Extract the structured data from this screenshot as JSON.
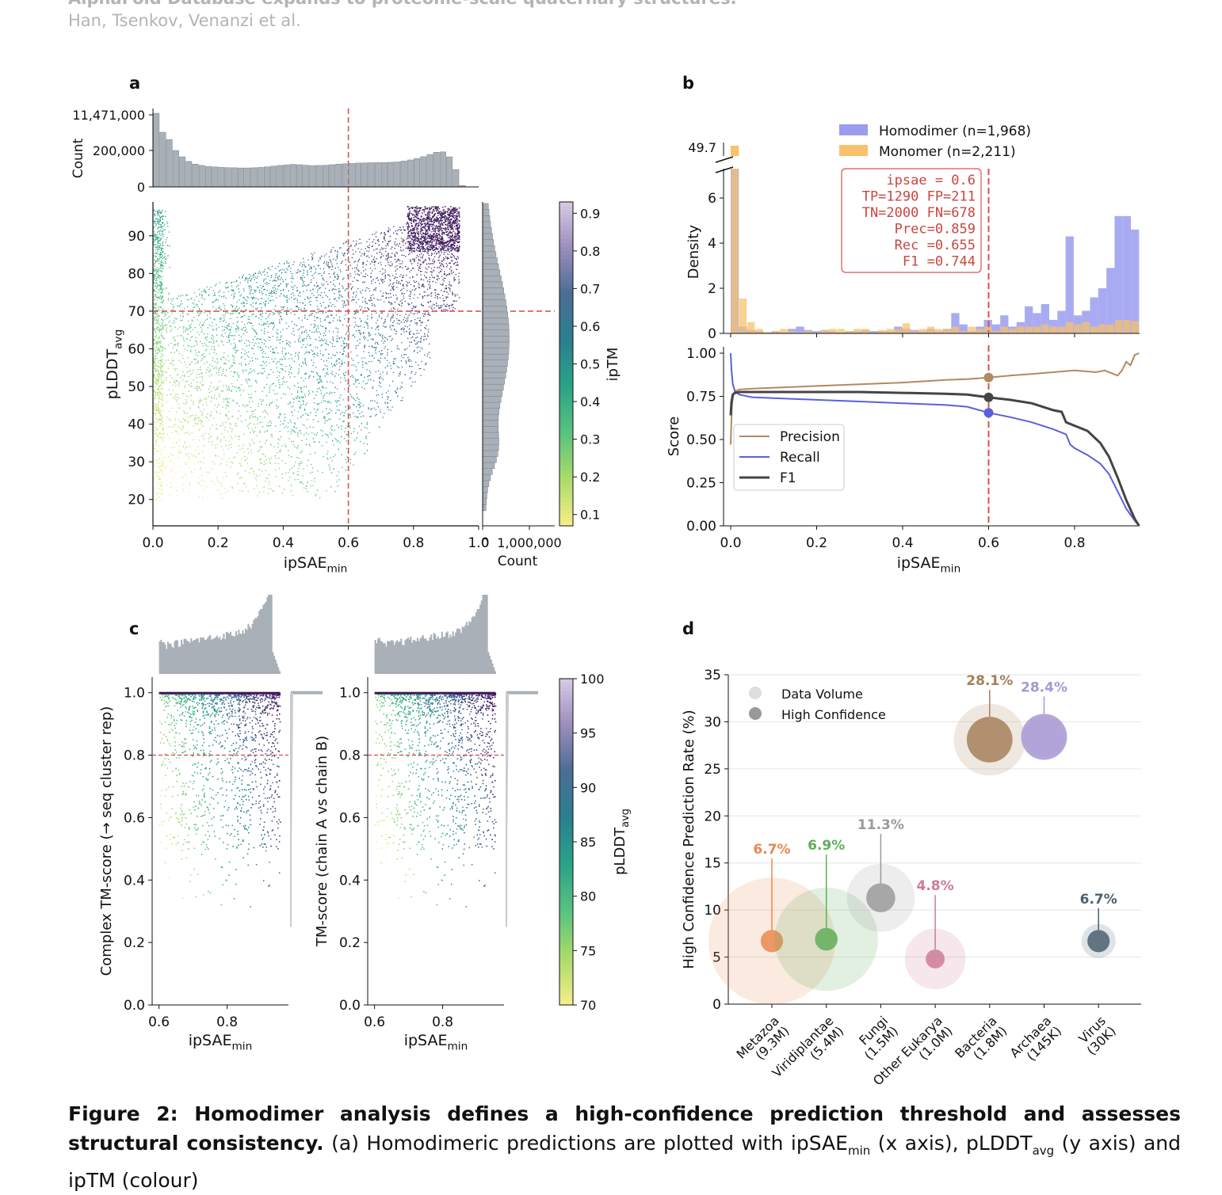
{
  "header": {
    "title": "AlphaFold Database expands to proteome-scale quaternary structures.",
    "authors": "Han, Tsenkov, Venanzi et al."
  },
  "panels": {
    "a": "a",
    "b": "b",
    "c": "c",
    "d": "d"
  },
  "caption": {
    "lead": "Figure 2: Homodimer analysis defines a high-confidence prediction threshold and assesses structural consistency.",
    "t1": " (a) Homodimeric predictions are plotted with ipSAE",
    "s1": "min",
    "t2": " (x axis), pLDDT",
    "s2": "avg",
    "t3": " (y axis) and ipTM (colour)"
  },
  "colors": {
    "threshold": "#d9534f",
    "hist_gray": "#a9b0b7",
    "homodimer": "#9a9cf0",
    "monomer": "#f7c26b",
    "precision": "#b08a63",
    "recall": "#5a60e0",
    "f1": "#444444"
  },
  "chart_data": [
    {
      "panel": "a",
      "type": "scatter",
      "xlabel": "ipSAE",
      "xlabel_sub": "min",
      "ylabel": "pLDDT",
      "ylabel_sub": "avg",
      "xlim": [
        0,
        1.0
      ],
      "ylim": [
        13,
        99
      ],
      "x_ticks": [
        "0.0",
        "0.2",
        "0.4",
        "0.6",
        "0.8",
        "1.0"
      ],
      "y_ticks": [
        "20",
        "30",
        "40",
        "50",
        "60",
        "70",
        "80",
        "90"
      ],
      "threshold_x": 0.6,
      "threshold_y": 70,
      "colorbar": {
        "label": "ipTM",
        "range": [
          0.07,
          0.93
        ],
        "ticks": [
          "0.1",
          "0.2",
          "0.3",
          "0.4",
          "0.5",
          "0.6",
          "0.7",
          "0.8",
          "0.9"
        ]
      },
      "top_hist": {
        "ylabel": "Count",
        "y_ticks": [
          "0",
          "200,000",
          "11,471,000"
        ],
        "bins_x": [
          0.0,
          0.02,
          0.04,
          0.06,
          0.08,
          0.1,
          0.12,
          0.14,
          0.16,
          0.18,
          0.2,
          0.22,
          0.24,
          0.26,
          0.28,
          0.3,
          0.32,
          0.34,
          0.36,
          0.38,
          0.4,
          0.42,
          0.44,
          0.46,
          0.48,
          0.5,
          0.52,
          0.54,
          0.56,
          0.58,
          0.6,
          0.62,
          0.64,
          0.66,
          0.68,
          0.7,
          0.72,
          0.74,
          0.76,
          0.78,
          0.8,
          0.82,
          0.84,
          0.86,
          0.88,
          0.9,
          0.92,
          0.94
        ],
        "counts": [
          11471000,
          300000,
          260000,
          200000,
          165000,
          140000,
          125000,
          118000,
          112000,
          110000,
          108000,
          106000,
          105000,
          104000,
          104000,
          105000,
          107000,
          110000,
          114000,
          118000,
          121000,
          124000,
          122000,
          119000,
          117000,
          118000,
          119000,
          122000,
          125000,
          127000,
          129000,
          131000,
          132000,
          133000,
          134000,
          134000,
          135000,
          137000,
          142000,
          148000,
          156000,
          166000,
          178000,
          190000,
          192000,
          165000,
          95000,
          8000
        ]
      },
      "right_hist": {
        "xlabel": "Count",
        "x_ticks": [
          "0",
          "1,000,000"
        ]
      }
    },
    {
      "panel": "b-top",
      "type": "bar",
      "ylabel": "Density",
      "xlim": [
        0,
        0.95
      ],
      "ylim": [
        0,
        7.3
      ],
      "y_ticks": [
        "0",
        "2",
        "4",
        "6"
      ],
      "broken_top": "49.7",
      "threshold_x": 0.6,
      "bin_width": 0.019,
      "series": [
        {
          "name": "Homodimer (n=1,968)",
          "x": [
            0.0,
            0.019,
            0.038,
            0.057,
            0.076,
            0.095,
            0.114,
            0.133,
            0.152,
            0.171,
            0.19,
            0.209,
            0.228,
            0.247,
            0.266,
            0.285,
            0.304,
            0.323,
            0.342,
            0.361,
            0.38,
            0.399,
            0.418,
            0.437,
            0.456,
            0.475,
            0.494,
            0.513,
            0.532,
            0.551,
            0.57,
            0.589,
            0.608,
            0.627,
            0.646,
            0.665,
            0.684,
            0.703,
            0.722,
            0.741,
            0.76,
            0.779,
            0.798,
            0.817,
            0.836,
            0.855,
            0.874,
            0.893,
            0.912,
            0.931
          ],
          "values": [
            7.3,
            0.3,
            0.15,
            0.1,
            0.05,
            0.1,
            0.05,
            0.2,
            0.3,
            0.15,
            0.1,
            0.15,
            0.1,
            0.05,
            0.1,
            0.1,
            0.15,
            0.1,
            0.1,
            0.1,
            0.3,
            0.2,
            0.15,
            0.1,
            0.2,
            0.1,
            0.2,
            0.9,
            0.4,
            0.1,
            0.3,
            0.6,
            0.4,
            0.8,
            0.3,
            0.5,
            1.2,
            0.9,
            1.3,
            0.6,
            1.0,
            4.3,
            0.8,
            1.0,
            1.6,
            2.0,
            2.9,
            5.2,
            5.2,
            4.6
          ]
        },
        {
          "name": "Monomer (n=2,211)",
          "x": [
            0.0,
            0.019,
            0.038,
            0.057,
            0.076,
            0.095,
            0.114,
            0.133,
            0.152,
            0.171,
            0.19,
            0.209,
            0.228,
            0.247,
            0.266,
            0.285,
            0.304,
            0.323,
            0.342,
            0.361,
            0.38,
            0.399,
            0.418,
            0.437,
            0.456,
            0.475,
            0.494,
            0.513,
            0.532,
            0.551,
            0.57,
            0.589,
            0.608,
            0.627,
            0.646,
            0.665,
            0.684,
            0.703,
            0.722,
            0.741,
            0.76,
            0.779,
            0.798,
            0.817,
            0.836,
            0.855,
            0.874,
            0.893,
            0.912,
            0.931
          ],
          "values": [
            7.3,
            1.55,
            0.5,
            0.2,
            0.05,
            0.1,
            0.2,
            0.1,
            0.05,
            0.1,
            0.05,
            0.15,
            0.2,
            0.2,
            0.1,
            0.2,
            0.2,
            0.05,
            0.15,
            0.2,
            0.2,
            0.45,
            0.1,
            0.2,
            0.3,
            0.2,
            0.2,
            0.3,
            0.1,
            0.3,
            0.2,
            0.3,
            0.1,
            0.3,
            0.2,
            0.3,
            0.3,
            0.3,
            0.4,
            0.3,
            0.3,
            0.5,
            0.4,
            0.5,
            0.3,
            0.4,
            0.4,
            0.6,
            0.6,
            0.55
          ]
        }
      ],
      "annotation": [
        "ipsae = 0.6",
        "TP=1290  FP=211",
        "TN=2000  FN=678",
        "Prec=0.859",
        "Rec =0.655",
        "F1  =0.744"
      ]
    },
    {
      "panel": "b-bottom",
      "type": "line",
      "xlabel": "ipSAE",
      "xlabel_sub": "min",
      "ylabel": "Score",
      "xlim": [
        0,
        0.95
      ],
      "ylim": [
        0,
        1.0
      ],
      "x_ticks": [
        "0.0",
        "0.2",
        "0.4",
        "0.6",
        "0.8"
      ],
      "y_ticks": [
        "0.00",
        "0.25",
        "0.50",
        "0.75",
        "1.00"
      ],
      "threshold_x": 0.6,
      "series": [
        {
          "name": "Precision",
          "x": [
            0.0,
            0.003,
            0.006,
            0.01,
            0.02,
            0.05,
            0.1,
            0.2,
            0.3,
            0.4,
            0.5,
            0.55,
            0.6,
            0.65,
            0.7,
            0.75,
            0.8,
            0.85,
            0.87,
            0.9,
            0.91,
            0.92,
            0.93,
            0.94,
            0.95
          ],
          "values": [
            0.47,
            0.7,
            0.76,
            0.78,
            0.79,
            0.795,
            0.8,
            0.81,
            0.82,
            0.83,
            0.845,
            0.85,
            0.859,
            0.87,
            0.88,
            0.89,
            0.9,
            0.89,
            0.9,
            0.87,
            0.9,
            0.95,
            0.93,
            0.99,
            1.0
          ]
        },
        {
          "name": "Recall",
          "x": [
            0.0,
            0.002,
            0.005,
            0.01,
            0.02,
            0.05,
            0.1,
            0.2,
            0.3,
            0.4,
            0.5,
            0.55,
            0.6,
            0.65,
            0.7,
            0.75,
            0.78,
            0.79,
            0.8,
            0.83,
            0.86,
            0.88,
            0.9,
            0.92,
            0.94,
            0.95
          ],
          "values": [
            1.0,
            0.9,
            0.82,
            0.78,
            0.76,
            0.745,
            0.74,
            0.73,
            0.72,
            0.71,
            0.7,
            0.69,
            0.655,
            0.63,
            0.6,
            0.56,
            0.53,
            0.47,
            0.45,
            0.41,
            0.36,
            0.3,
            0.2,
            0.1,
            0.03,
            0.0
          ]
        },
        {
          "name": "F1",
          "x": [
            0.0,
            0.002,
            0.005,
            0.01,
            0.02,
            0.05,
            0.1,
            0.2,
            0.3,
            0.4,
            0.5,
            0.55,
            0.6,
            0.65,
            0.7,
            0.75,
            0.77,
            0.78,
            0.8,
            0.83,
            0.86,
            0.88,
            0.9,
            0.92,
            0.94,
            0.95
          ],
          "values": [
            0.64,
            0.72,
            0.76,
            0.77,
            0.775,
            0.775,
            0.775,
            0.775,
            0.775,
            0.77,
            0.765,
            0.76,
            0.744,
            0.73,
            0.71,
            0.67,
            0.66,
            0.6,
            0.58,
            0.55,
            0.48,
            0.4,
            0.28,
            0.15,
            0.04,
            0.0
          ]
        }
      ],
      "markers": [
        {
          "series": "Precision",
          "x": 0.6,
          "y": 0.859
        },
        {
          "series": "F1",
          "x": 0.6,
          "y": 0.744
        },
        {
          "series": "Recall",
          "x": 0.6,
          "y": 0.655
        }
      ]
    },
    {
      "panel": "c-left",
      "type": "scatter",
      "xlabel": "ipSAE",
      "xlabel_sub": "min",
      "ylabel": "Complex TM-score (→ seq cluster rep)",
      "xlim": [
        0.58,
        0.98
      ],
      "ylim": [
        0,
        1.05
      ],
      "x_ticks": [
        "0.6",
        "0.8"
      ],
      "y_ticks": [
        "0.0",
        "0.2",
        "0.4",
        "0.6",
        "0.8",
        "1.0"
      ],
      "threshold_y": 0.8
    },
    {
      "panel": "c-right",
      "type": "scatter",
      "xlabel": "ipSAE",
      "xlabel_sub": "min",
      "ylabel": "TM-score (chain A vs chain B)",
      "xlim": [
        0.58,
        0.98
      ],
      "ylim": [
        0,
        1.05
      ],
      "x_ticks": [
        "0.6",
        "0.8"
      ],
      "y_ticks": [
        "0.0",
        "0.2",
        "0.4",
        "0.6",
        "0.8",
        "1.0"
      ],
      "threshold_y": 0.8,
      "colorbar": {
        "label": "pLDDT",
        "label_sub": "avg",
        "range": [
          70,
          100
        ],
        "ticks": [
          "70",
          "75",
          "80",
          "85",
          "90",
          "95",
          "100"
        ]
      }
    },
    {
      "panel": "d",
      "type": "scatter",
      "ylabel": "High Confidence Prediction Rate (%)",
      "ylim": [
        0,
        35
      ],
      "y_ticks": [
        "0",
        "5",
        "10",
        "15",
        "20",
        "25",
        "30",
        "35"
      ],
      "legend": [
        "Data Volume",
        "High Confidence"
      ],
      "categories": [
        "Metazoa\n(9.3M)",
        "Viridiplantae\n(5.4M)",
        "Fungi\n(1.5M)",
        "Other Eukarya\n(1.0M)",
        "Bacteria\n(1.8M)",
        "Archaea\n(145K)",
        "Virus\n(30K)"
      ],
      "values": [
        6.7,
        6.9,
        11.3,
        4.8,
        28.1,
        28.4,
        6.7
      ],
      "labels": [
        "6.7%",
        "6.9%",
        "11.3%",
        "4.8%",
        "28.1%",
        "28.4%",
        "6.7%"
      ],
      "label_offsets": [
        9.3,
        9.5,
        7.3,
        7.3,
        5.8,
        4.8,
        4.0
      ],
      "volume": [
        9.3,
        5.4,
        1.5,
        1.0,
        1.8,
        0.145,
        0.03
      ],
      "colors": [
        "#e8894e",
        "#5fae5a",
        "#9a9a9a",
        "#cc7b97",
        "#a4805a",
        "#a798d4",
        "#4a6270"
      ]
    }
  ]
}
